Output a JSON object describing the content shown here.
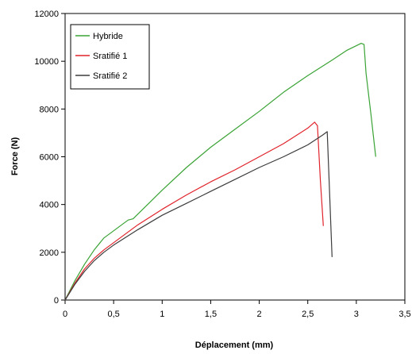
{
  "chart_data": {
    "type": "line",
    "title": "",
    "xlabel": "Déplacement (mm)",
    "ylabel": "Force (N)",
    "xlim": [
      0,
      3.5
    ],
    "ylim": [
      0,
      12000
    ],
    "x_ticks": [
      "0",
      "0,5",
      "1",
      "1,5",
      "2",
      "2,5",
      "3",
      "3,5"
    ],
    "y_ticks": [
      "0",
      "2000",
      "4000",
      "6000",
      "8000",
      "10000",
      "12000"
    ],
    "grid": false,
    "legend_position": "top-left",
    "series": [
      {
        "name": "Hybride",
        "color": "#3aa335",
        "x": [
          0,
          0.1,
          0.2,
          0.3,
          0.4,
          0.5,
          0.6,
          0.65,
          0.7,
          0.8,
          1.0,
          1.25,
          1.5,
          1.75,
          2.0,
          2.25,
          2.5,
          2.75,
          2.9,
          3.0,
          3.05,
          3.08,
          3.1,
          3.15,
          3.2
        ],
        "y": [
          0,
          800,
          1500,
          2100,
          2600,
          2900,
          3200,
          3350,
          3400,
          3800,
          4600,
          5550,
          6400,
          7150,
          7900,
          8700,
          9400,
          10050,
          10450,
          10650,
          10750,
          10700,
          9500,
          7800,
          6000
        ]
      },
      {
        "name": "Sratifié 1",
        "color": "#e0222a",
        "x": [
          0,
          0.1,
          0.2,
          0.3,
          0.4,
          0.5,
          0.75,
          1.0,
          1.25,
          1.5,
          1.75,
          2.0,
          2.25,
          2.5,
          2.57,
          2.6,
          2.63,
          2.66
        ],
        "y": [
          0,
          700,
          1300,
          1750,
          2100,
          2400,
          3150,
          3800,
          4400,
          4950,
          5450,
          6000,
          6550,
          7200,
          7450,
          7300,
          5000,
          3100
        ]
      },
      {
        "name": "Sratifié 2",
        "color": "#3c3c3c",
        "x": [
          0,
          0.1,
          0.2,
          0.3,
          0.4,
          0.5,
          0.75,
          1.0,
          1.25,
          1.5,
          1.75,
          2.0,
          2.25,
          2.5,
          2.65,
          2.7,
          2.72,
          2.75
        ],
        "y": [
          0,
          650,
          1200,
          1650,
          2000,
          2300,
          2950,
          3550,
          4050,
          4550,
          5050,
          5550,
          6000,
          6500,
          6900,
          7050,
          5000,
          1800
        ]
      }
    ]
  }
}
